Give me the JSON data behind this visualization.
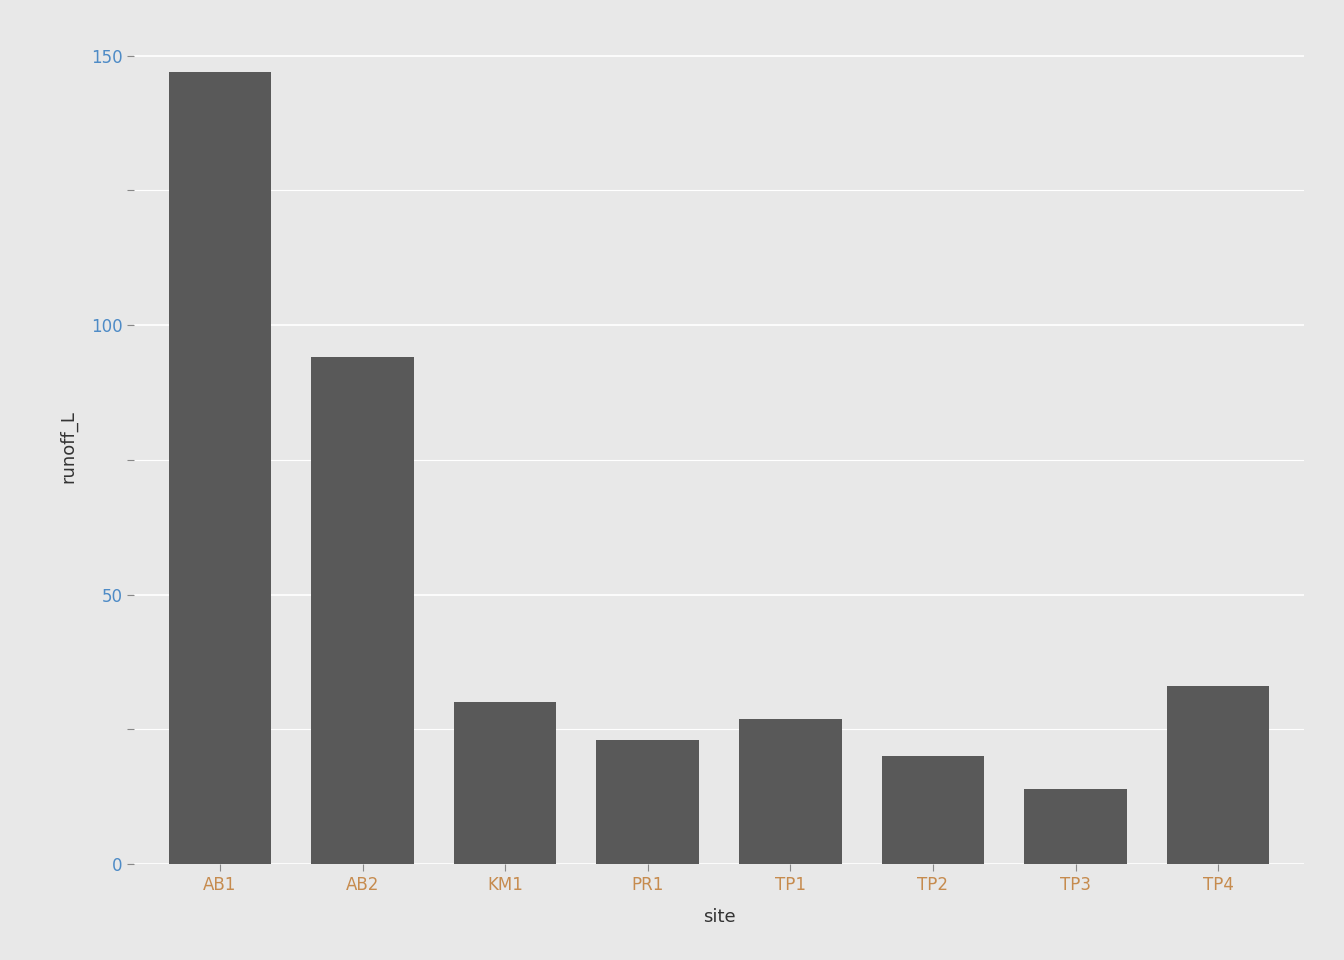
{
  "categories": [
    "AB1",
    "AB2",
    "KM1",
    "PR1",
    "TP1",
    "TP2",
    "TP3",
    "TP4"
  ],
  "values": [
    147,
    94,
    30,
    23,
    27,
    20,
    14,
    33
  ],
  "bar_color": "#595959",
  "fig_background": "#e8e8e8",
  "panel_background": "#e8e8e8",
  "grid_color": "#ffffff",
  "xlabel": "site",
  "ylabel": "runoff_L",
  "ylim": [
    0,
    155
  ],
  "yticks": [
    0,
    50,
    100,
    150
  ],
  "xlabel_fontsize": 13,
  "ylabel_fontsize": 13,
  "tick_fontsize": 12,
  "tick_color_x": "#c68b4e",
  "tick_color_y": "#4e8bc6",
  "bar_width": 0.72
}
